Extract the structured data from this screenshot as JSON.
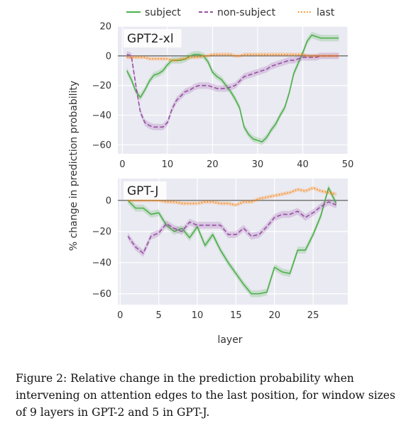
{
  "caption": "Figure 2: Relative change in the prediction probability when intervening on attention edges to the last position, for window sizes of 9 layers in GPT-2 and 5 in GPT-J.",
  "chart_data": [
    {
      "type": "line",
      "title": "GPT2-xl",
      "ylabel": "% change in prediction probability",
      "xlabel": "",
      "xlim": [
        -1,
        50
      ],
      "ylim": [
        -66,
        20
      ],
      "xticks": [
        0,
        10,
        20,
        30,
        40,
        50
      ],
      "yticks": [
        20,
        0,
        -20,
        -40,
        -60
      ],
      "grid": true,
      "legend": "top-center",
      "x": [
        1,
        2,
        3,
        4,
        5,
        6,
        7,
        8,
        9,
        10,
        11,
        12,
        13,
        14,
        15,
        16,
        17,
        18,
        19,
        20,
        21,
        22,
        23,
        24,
        25,
        26,
        27,
        28,
        29,
        30,
        31,
        32,
        33,
        34,
        35,
        36,
        37,
        38,
        39,
        40,
        41,
        42,
        43,
        44,
        45,
        46,
        47,
        48
      ],
      "series": [
        {
          "name": "subject",
          "color": "#4daf4a",
          "style": "solid",
          "values": [
            -10,
            -16,
            -24,
            -28,
            -23,
            -17,
            -13,
            -12,
            -10,
            -6,
            -3,
            -3,
            -3,
            -2,
            0,
            1,
            1,
            0,
            -4,
            -11,
            -14,
            -16,
            -20,
            -24,
            -29,
            -35,
            -48,
            -53,
            -56,
            -57,
            -58,
            -55,
            -50,
            -46,
            -40,
            -35,
            -25,
            -12,
            -5,
            2,
            10,
            14,
            13,
            12,
            12,
            12,
            12,
            12
          ]
        },
        {
          "name": "non-subject",
          "color": "#984ea3",
          "style": "dashed",
          "values": [
            1,
            0,
            -20,
            -38,
            -45,
            -47,
            -48,
            -48,
            -48,
            -45,
            -36,
            -30,
            -27,
            -24,
            -23,
            -21,
            -20,
            -20,
            -20,
            -21,
            -22,
            -22,
            -22,
            -21,
            -20,
            -17,
            -14,
            -13,
            -12,
            -11,
            -10,
            -9,
            -7,
            -6,
            -5,
            -4,
            -3,
            -3,
            -2,
            -1,
            -1,
            -1,
            -1,
            0,
            0,
            0,
            0,
            0
          ]
        },
        {
          "name": "last",
          "color": "#ff7f00",
          "style": "dotted",
          "values": [
            -1,
            -1,
            -1,
            -1,
            -1,
            -2,
            -2,
            -2,
            -2,
            -2,
            -3,
            -3,
            -2,
            -2,
            -1,
            -1,
            -1,
            0,
            0,
            1,
            1,
            1,
            1,
            1,
            0,
            0,
            1,
            1,
            1,
            1,
            1,
            1,
            1,
            1,
            1,
            1,
            1,
            1,
            1,
            1,
            0,
            0,
            0,
            0,
            0,
            0,
            0,
            0
          ]
        }
      ]
    },
    {
      "type": "line",
      "title": "GPT-J",
      "ylabel": "% change in prediction probability",
      "xlabel": "layer",
      "xlim": [
        -0.3,
        29.5
      ],
      "ylim": [
        -67,
        14
      ],
      "xticks": [
        0,
        5,
        10,
        15,
        20,
        25
      ],
      "yticks": [
        0,
        -20,
        -40,
        -60
      ],
      "grid": true,
      "x": [
        1,
        2,
        3,
        4,
        5,
        6,
        7,
        8,
        9,
        10,
        11,
        12,
        13,
        14,
        15,
        16,
        17,
        18,
        19,
        20,
        21,
        22,
        23,
        24,
        25,
        26,
        27,
        28
      ],
      "series": [
        {
          "name": "subject",
          "color": "#4daf4a",
          "style": "solid",
          "values": [
            0,
            -5,
            -5,
            -9,
            -8,
            -16,
            -20,
            -18,
            -24,
            -17,
            -29,
            -22,
            -32,
            -40,
            -47,
            -54,
            -60,
            -60,
            -59,
            -43,
            -46,
            -47,
            -32,
            -32,
            -22,
            -10,
            8,
            -2
          ]
        },
        {
          "name": "non-subject",
          "color": "#984ea3",
          "style": "dashed",
          "values": [
            -23,
            -30,
            -34,
            -23,
            -21,
            -15,
            -18,
            -20,
            -14,
            -16,
            -16,
            -16,
            -16,
            -22,
            -22,
            -18,
            -23,
            -22,
            -17,
            -11,
            -9,
            -9,
            -7,
            -11,
            -8,
            -4,
            -1,
            -3
          ]
        },
        {
          "name": "last",
          "color": "#ff7f00",
          "style": "dotted",
          "values": [
            0,
            0,
            0,
            0,
            0,
            -1,
            -1,
            -2,
            -2,
            -2,
            -1,
            -1,
            -2,
            -2,
            -3,
            -1,
            -1,
            1,
            2,
            3,
            4,
            5,
            7,
            6,
            8,
            6,
            5,
            4
          ]
        }
      ]
    }
  ]
}
